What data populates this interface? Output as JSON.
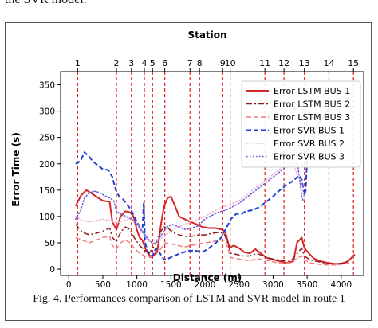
{
  "document": {
    "top_text": "the SVR model.",
    "caption": "Fig. 4.   Performances comparison of LSTM and SVR model in route 1"
  },
  "chart_data": {
    "type": "line",
    "title": "",
    "xlabel": "Distance (m)",
    "ylabel": "Error Time (s)",
    "secondary_xlabel": "Station",
    "xlim": [
      -120,
      4330
    ],
    "ylim": [
      -12,
      375
    ],
    "xticks": [
      0,
      500,
      1000,
      1500,
      2000,
      2500,
      3000,
      3500,
      4000
    ],
    "yticks": [
      0,
      50,
      100,
      150,
      200,
      250,
      300,
      350
    ],
    "grid": false,
    "legend_position": "top-right",
    "stations": [
      {
        "label": "1",
        "x": 130
      },
      {
        "label": "2",
        "x": 700
      },
      {
        "label": "3",
        "x": 920
      },
      {
        "label": "4",
        "x": 1110
      },
      {
        "label": "5",
        "x": 1230
      },
      {
        "label": "6",
        "x": 1410
      },
      {
        "label": "7",
        "x": 1780
      },
      {
        "label": "8",
        "x": 1920
      },
      {
        "label": "9",
        "x": 2260
      },
      {
        "label": "10",
        "x": 2370
      },
      {
        "label": "11",
        "x": 2880
      },
      {
        "label": "12",
        "x": 3160
      },
      {
        "label": "13",
        "x": 3460
      },
      {
        "label": "14",
        "x": 3820
      },
      {
        "label": "15",
        "x": 4180
      }
    ],
    "series": [
      {
        "name": "Error LSTM BUS 1",
        "color": "#d62728",
        "dash": "solid",
        "width": 2,
        "points": [
          [
            100,
            120
          ],
          [
            180,
            140
          ],
          [
            260,
            150
          ],
          [
            380,
            140
          ],
          [
            500,
            130
          ],
          [
            600,
            128
          ],
          [
            640,
            90
          ],
          [
            700,
            75
          ],
          [
            760,
            100
          ],
          [
            830,
            110
          ],
          [
            900,
            108
          ],
          [
            950,
            100
          ],
          [
            1000,
            75
          ],
          [
            1040,
            60
          ],
          [
            1080,
            55
          ],
          [
            1120,
            40
          ],
          [
            1160,
            30
          ],
          [
            1220,
            22
          ],
          [
            1300,
            35
          ],
          [
            1360,
            90
          ],
          [
            1400,
            120
          ],
          [
            1450,
            135
          ],
          [
            1500,
            138
          ],
          [
            1560,
            120
          ],
          [
            1620,
            100
          ],
          [
            1700,
            95
          ],
          [
            1780,
            90
          ],
          [
            1880,
            85
          ],
          [
            1960,
            80
          ],
          [
            2060,
            78
          ],
          [
            2150,
            78
          ],
          [
            2260,
            75
          ],
          [
            2300,
            70
          ],
          [
            2360,
            40
          ],
          [
            2420,
            45
          ],
          [
            2500,
            40
          ],
          [
            2580,
            32
          ],
          [
            2660,
            30
          ],
          [
            2740,
            38
          ],
          [
            2820,
            30
          ],
          [
            2900,
            22
          ],
          [
            3000,
            18
          ],
          [
            3100,
            15
          ],
          [
            3200,
            12
          ],
          [
            3300,
            15
          ],
          [
            3350,
            50
          ],
          [
            3420,
            60
          ],
          [
            3460,
            40
          ],
          [
            3540,
            28
          ],
          [
            3600,
            20
          ],
          [
            3700,
            15
          ],
          [
            3800,
            12
          ],
          [
            3900,
            10
          ],
          [
            4000,
            10
          ],
          [
            4100,
            15
          ],
          [
            4200,
            28
          ]
        ]
      },
      {
        "name": "Error LSTM BUS 2",
        "color": "#8b1a1a",
        "dash": "dashdot",
        "width": 1.5,
        "points": [
          [
            100,
            85
          ],
          [
            200,
            70
          ],
          [
            300,
            65
          ],
          [
            400,
            68
          ],
          [
            500,
            72
          ],
          [
            600,
            78
          ],
          [
            640,
            60
          ],
          [
            700,
            52
          ],
          [
            760,
            70
          ],
          [
            830,
            80
          ],
          [
            900,
            75
          ],
          [
            960,
            60
          ],
          [
            1040,
            45
          ],
          [
            1120,
            35
          ],
          [
            1180,
            30
          ],
          [
            1260,
            45
          ],
          [
            1340,
            70
          ],
          [
            1400,
            80
          ],
          [
            1460,
            78
          ],
          [
            1520,
            70
          ],
          [
            1620,
            65
          ],
          [
            1700,
            62
          ],
          [
            1800,
            62
          ],
          [
            1900,
            65
          ],
          [
            2000,
            65
          ],
          [
            2100,
            68
          ],
          [
            2200,
            70
          ],
          [
            2280,
            68
          ],
          [
            2320,
            55
          ],
          [
            2380,
            30
          ],
          [
            2460,
            28
          ],
          [
            2560,
            25
          ],
          [
            2660,
            25
          ],
          [
            2760,
            30
          ],
          [
            2860,
            25
          ],
          [
            2960,
            20
          ],
          [
            3060,
            18
          ],
          [
            3160,
            16
          ],
          [
            3260,
            15
          ],
          [
            3340,
            28
          ],
          [
            3420,
            40
          ],
          [
            3460,
            25
          ],
          [
            3540,
            18
          ],
          [
            3640,
            15
          ],
          [
            3740,
            12
          ],
          [
            3840,
            10
          ],
          [
            3940,
            10
          ],
          [
            4040,
            12
          ],
          [
            4120,
            15
          ]
        ]
      },
      {
        "name": "Error LSTM BUS 3",
        "color": "#f08080",
        "dash": "dashed",
        "width": 1.5,
        "points": [
          [
            100,
            60
          ],
          [
            200,
            55
          ],
          [
            300,
            50
          ],
          [
            400,
            55
          ],
          [
            500,
            60
          ],
          [
            600,
            62
          ],
          [
            640,
            45
          ],
          [
            700,
            38
          ],
          [
            760,
            50
          ],
          [
            830,
            55
          ],
          [
            900,
            50
          ],
          [
            960,
            40
          ],
          [
            1040,
            30
          ],
          [
            1120,
            25
          ],
          [
            1200,
            22
          ],
          [
            1280,
            28
          ],
          [
            1360,
            40
          ],
          [
            1420,
            50
          ],
          [
            1500,
            48
          ],
          [
            1600,
            45
          ],
          [
            1700,
            42
          ],
          [
            1800,
            45
          ],
          [
            1900,
            48
          ],
          [
            2000,
            50
          ],
          [
            2100,
            52
          ],
          [
            2200,
            55
          ],
          [
            2280,
            55
          ],
          [
            2320,
            45
          ],
          [
            2380,
            22
          ],
          [
            2460,
            20
          ],
          [
            2560,
            18
          ],
          [
            2660,
            16
          ],
          [
            2760,
            20
          ],
          [
            2860,
            18
          ],
          [
            2960,
            15
          ],
          [
            3060,
            12
          ],
          [
            3160,
            12
          ],
          [
            3260,
            12
          ],
          [
            3340,
            20
          ],
          [
            3420,
            25
          ],
          [
            3460,
            18
          ],
          [
            3540,
            12
          ],
          [
            3640,
            10
          ],
          [
            3740,
            8
          ],
          [
            3840,
            8
          ],
          [
            3940,
            8
          ],
          [
            4040,
            10
          ],
          [
            4120,
            12
          ]
        ]
      },
      {
        "name": "Error SVR BUS 1",
        "color": "#1f3fd6",
        "dash": "dashed",
        "width": 2,
        "points": [
          [
            100,
            200
          ],
          [
            170,
            205
          ],
          [
            230,
            222
          ],
          [
            290,
            215
          ],
          [
            350,
            205
          ],
          [
            420,
            198
          ],
          [
            500,
            190
          ],
          [
            580,
            188
          ],
          [
            640,
            175
          ],
          [
            690,
            150
          ],
          [
            740,
            138
          ],
          [
            800,
            132
          ],
          [
            860,
            122
          ],
          [
            920,
            112
          ],
          [
            980,
            95
          ],
          [
            1040,
            80
          ],
          [
            1080,
            70
          ],
          [
            1100,
            125
          ],
          [
            1120,
            50
          ],
          [
            1170,
            30
          ],
          [
            1230,
            25
          ],
          [
            1280,
            40
          ],
          [
            1330,
            32
          ],
          [
            1400,
            18
          ],
          [
            1460,
            20
          ],
          [
            1540,
            25
          ],
          [
            1640,
            30
          ],
          [
            1760,
            35
          ],
          [
            1860,
            35
          ],
          [
            1960,
            32
          ],
          [
            2060,
            40
          ],
          [
            2160,
            50
          ],
          [
            2240,
            60
          ],
          [
            2300,
            75
          ],
          [
            2380,
            95
          ],
          [
            2460,
            105
          ],
          [
            2540,
            105
          ],
          [
            2600,
            110
          ],
          [
            2700,
            112
          ],
          [
            2800,
            118
          ],
          [
            2900,
            128
          ],
          [
            3000,
            138
          ],
          [
            3100,
            150
          ],
          [
            3200,
            160
          ],
          [
            3300,
            168
          ],
          [
            3380,
            178
          ],
          [
            3420,
            170
          ],
          [
            3460,
            140
          ],
          [
            3480,
            150
          ],
          [
            3500,
            212
          ],
          [
            3540,
            240
          ],
          [
            3600,
            262
          ],
          [
            3660,
            275
          ],
          [
            3720,
            285
          ],
          [
            3760,
            292
          ],
          [
            3800,
            300
          ],
          [
            3840,
            320
          ]
        ]
      },
      {
        "name": "Error SVR BUS 2",
        "color": "#f2b0d0",
        "dash": "dotted",
        "width": 1.5,
        "points": [
          [
            100,
            100
          ],
          [
            200,
            92
          ],
          [
            300,
            90
          ],
          [
            400,
            92
          ],
          [
            500,
            95
          ],
          [
            600,
            92
          ],
          [
            700,
            88
          ],
          [
            800,
            92
          ],
          [
            900,
            95
          ],
          [
            1000,
            88
          ],
          [
            1080,
            70
          ],
          [
            1160,
            55
          ],
          [
            1240,
            48
          ],
          [
            1320,
            55
          ],
          [
            1400,
            62
          ],
          [
            1500,
            72
          ],
          [
            1600,
            80
          ],
          [
            1700,
            85
          ],
          [
            1800,
            90
          ],
          [
            1900,
            95
          ],
          [
            2000,
            100
          ],
          [
            2100,
            108
          ],
          [
            2200,
            115
          ],
          [
            2300,
            120
          ],
          [
            2400,
            125
          ],
          [
            2500,
            130
          ],
          [
            2600,
            140
          ],
          [
            2700,
            150
          ],
          [
            2800,
            160
          ],
          [
            2900,
            170
          ],
          [
            3000,
            180
          ],
          [
            3100,
            190
          ],
          [
            3200,
            198
          ],
          [
            3300,
            202
          ],
          [
            3360,
            175
          ],
          [
            3400,
            170
          ],
          [
            3440,
            150
          ],
          [
            3460,
            132
          ]
        ]
      },
      {
        "name": "Error SVR BUS 3",
        "color": "#6a5adc",
        "dash": "dotted",
        "width": 1.5,
        "points": [
          [
            100,
            95
          ],
          [
            170,
            110
          ],
          [
            230,
            135
          ],
          [
            300,
            145
          ],
          [
            380,
            148
          ],
          [
            460,
            145
          ],
          [
            520,
            140
          ],
          [
            600,
            135
          ],
          [
            660,
            130
          ],
          [
            700,
            110
          ],
          [
            760,
            105
          ],
          [
            840,
            100
          ],
          [
            920,
            95
          ],
          [
            1000,
            85
          ],
          [
            1060,
            75
          ],
          [
            1120,
            65
          ],
          [
            1180,
            55
          ],
          [
            1240,
            48
          ],
          [
            1300,
            52
          ],
          [
            1360,
            65
          ],
          [
            1440,
            80
          ],
          [
            1520,
            85
          ],
          [
            1620,
            80
          ],
          [
            1720,
            75
          ],
          [
            1800,
            78
          ],
          [
            1900,
            82
          ],
          [
            2000,
            95
          ],
          [
            2100,
            102
          ],
          [
            2200,
            108
          ],
          [
            2300,
            112
          ],
          [
            2400,
            118
          ],
          [
            2500,
            125
          ],
          [
            2600,
            135
          ],
          [
            2700,
            145
          ],
          [
            2800,
            155
          ],
          [
            2900,
            165
          ],
          [
            3000,
            175
          ],
          [
            3100,
            185
          ],
          [
            3200,
            195
          ],
          [
            3300,
            200
          ],
          [
            3360,
            200
          ],
          [
            3400,
            160
          ],
          [
            3420,
            140
          ],
          [
            3440,
            130
          ]
        ]
      }
    ]
  }
}
